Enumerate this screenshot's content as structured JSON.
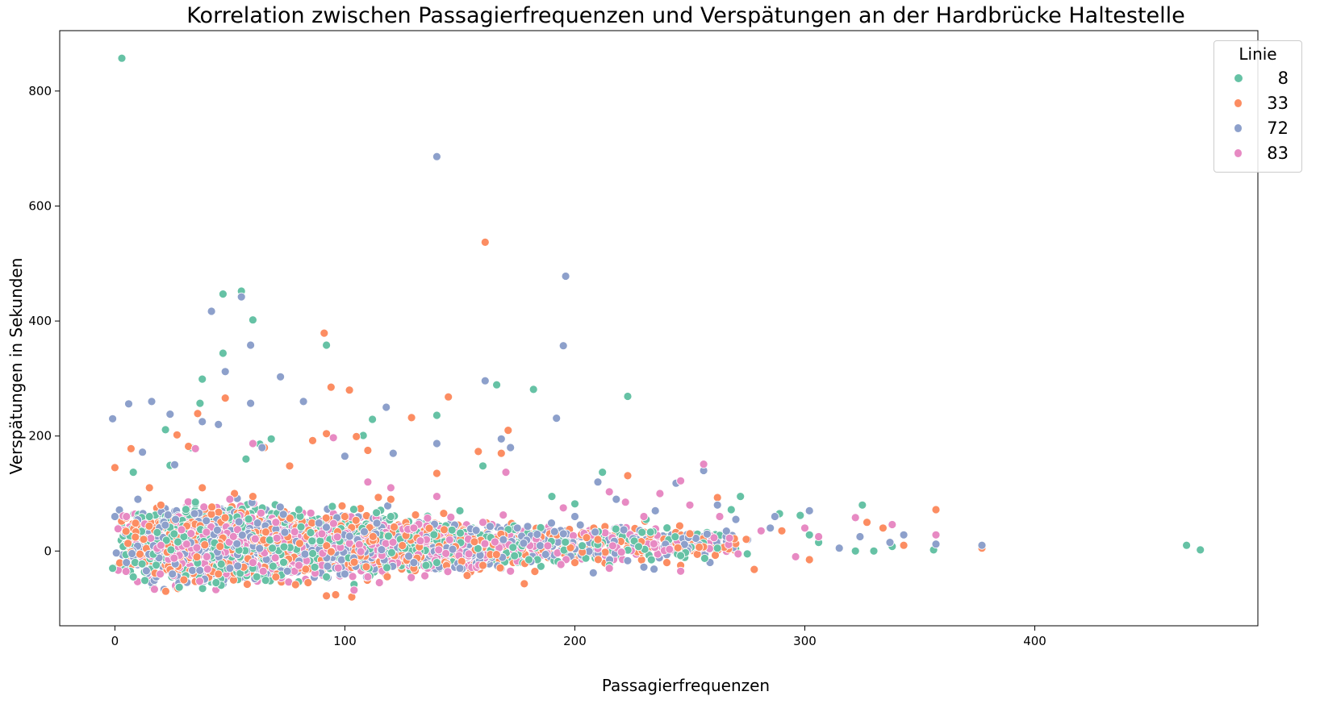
{
  "chart_data": {
    "type": "scatter",
    "title": "Korrelation zwischen Passagierfrequenzen und Verspätungen an der Hardbrücke Haltestelle",
    "xlabel": "Passagierfrequenzen",
    "ylabel": "Verspätungen in Sekunden",
    "xlim": [
      -24,
      497
    ],
    "ylim": [
      -130,
      905
    ],
    "xticks": [
      0,
      100,
      200,
      300,
      400
    ],
    "yticks": [
      0,
      200,
      400,
      600,
      800
    ],
    "grid": false,
    "legend": {
      "title": "Linie",
      "placement": "top-right"
    },
    "series": [
      {
        "name": "8",
        "color": "#66c2a5",
        "points": [
          [
            3,
            857
          ],
          [
            47,
            447
          ],
          [
            55,
            452
          ],
          [
            60,
            402
          ],
          [
            47,
            344
          ],
          [
            38,
            299
          ],
          [
            92,
            358
          ],
          [
            182,
            281
          ],
          [
            223,
            269
          ],
          [
            166,
            289
          ],
          [
            140,
            236
          ],
          [
            112,
            229
          ],
          [
            37,
            257
          ],
          [
            22,
            211
          ],
          [
            68,
            195
          ],
          [
            108,
            201
          ],
          [
            33,
            180
          ],
          [
            63,
            186
          ],
          [
            160,
            148
          ],
          [
            57,
            160
          ],
          [
            24,
            149
          ],
          [
            212,
            137
          ],
          [
            8,
            137
          ],
          [
            190,
            95
          ],
          [
            272,
            95
          ],
          [
            325,
            80
          ],
          [
            466,
            10
          ],
          [
            472,
            2
          ],
          [
            338,
            8
          ],
          [
            298,
            62
          ],
          [
            289,
            65
          ],
          [
            268,
            72
          ],
          [
            231,
            55
          ],
          [
            200,
            82
          ],
          [
            120,
            60
          ],
          [
            150,
            70
          ],
          [
            80,
            72
          ],
          [
            35,
            85
          ],
          [
            15,
            60
          ],
          [
            -1,
            -30
          ],
          [
            28,
            -63
          ],
          [
            104,
            -58
          ],
          [
            8,
            -45
          ],
          [
            44,
            -55
          ],
          [
            60,
            -30
          ],
          [
            92,
            -45
          ],
          [
            140,
            -20
          ],
          [
            180,
            -15
          ],
          [
            215,
            -25
          ],
          [
            246,
            -8
          ],
          [
            262,
            5
          ],
          [
            275,
            -5
          ],
          [
            302,
            28
          ],
          [
            306,
            15
          ],
          [
            322,
            0
          ],
          [
            356,
            2
          ],
          [
            330,
            0
          ]
        ]
      },
      {
        "name": "33",
        "color": "#fc8d62",
        "points": [
          [
            161,
            537
          ],
          [
            91,
            379
          ],
          [
            94,
            285
          ],
          [
            145,
            268
          ],
          [
            48,
            266
          ],
          [
            102,
            280
          ],
          [
            129,
            232
          ],
          [
            36,
            239
          ],
          [
            92,
            204
          ],
          [
            86,
            192
          ],
          [
            105,
            199
          ],
          [
            171,
            210
          ],
          [
            7,
            178
          ],
          [
            27,
            202
          ],
          [
            32,
            182
          ],
          [
            158,
            173
          ],
          [
            168,
            170
          ],
          [
            110,
            175
          ],
          [
            65,
            180
          ],
          [
            76,
            148
          ],
          [
            0,
            145
          ],
          [
            15,
            110
          ],
          [
            52,
            100
          ],
          [
            140,
            135
          ],
          [
            223,
            131
          ],
          [
            262,
            93
          ],
          [
            357,
            72
          ],
          [
            377,
            5
          ],
          [
            302,
            -15
          ],
          [
            278,
            -32
          ],
          [
            178,
            -57
          ],
          [
            103,
            -80
          ],
          [
            92,
            -78
          ],
          [
            96,
            -76
          ],
          [
            84,
            -55
          ],
          [
            30,
            -50
          ],
          [
            45,
            -40
          ],
          [
            70,
            -45
          ],
          [
            130,
            -30
          ],
          [
            160,
            -25
          ],
          [
            200,
            -20
          ],
          [
            240,
            -20
          ],
          [
            246,
            -25
          ],
          [
            210,
            20
          ],
          [
            250,
            30
          ],
          [
            290,
            35
          ],
          [
            315,
            5
          ],
          [
            327,
            50
          ],
          [
            334,
            40
          ],
          [
            343,
            10
          ],
          [
            120,
            90
          ],
          [
            60,
            95
          ],
          [
            20,
            80
          ],
          [
            38,
            110
          ],
          [
            100,
            60
          ]
        ]
      },
      {
        "name": "72",
        "color": "#8da0cb",
        "points": [
          [
            140,
            686
          ],
          [
            196,
            478
          ],
          [
            42,
            417
          ],
          [
            55,
            442
          ],
          [
            195,
            357
          ],
          [
            59,
            358
          ],
          [
            48,
            312
          ],
          [
            72,
            303
          ],
          [
            161,
            296
          ],
          [
            118,
            250
          ],
          [
            82,
            260
          ],
          [
            16,
            260
          ],
          [
            6,
            256
          ],
          [
            59,
            257
          ],
          [
            -1,
            230
          ],
          [
            24,
            238
          ],
          [
            192,
            231
          ],
          [
            38,
            225
          ],
          [
            45,
            220
          ],
          [
            168,
            195
          ],
          [
            172,
            180
          ],
          [
            140,
            187
          ],
          [
            100,
            165
          ],
          [
            121,
            170
          ],
          [
            64,
            180
          ],
          [
            12,
            172
          ],
          [
            26,
            150
          ],
          [
            210,
            120
          ],
          [
            256,
            140
          ],
          [
            244,
            118
          ],
          [
            262,
            80
          ],
          [
            287,
            60
          ],
          [
            302,
            70
          ],
          [
            324,
            25
          ],
          [
            343,
            28
          ],
          [
            357,
            12
          ],
          [
            377,
            10
          ],
          [
            337,
            15
          ],
          [
            315,
            5
          ],
          [
            285,
            40
          ],
          [
            270,
            55
          ],
          [
            235,
            70
          ],
          [
            218,
            90
          ],
          [
            200,
            60
          ],
          [
            175,
            40
          ],
          [
            150,
            -30
          ],
          [
            130,
            -20
          ],
          [
            100,
            -40
          ],
          [
            75,
            -35
          ],
          [
            50,
            -30
          ],
          [
            25,
            -40
          ],
          [
            5,
            -20
          ],
          [
            0,
            60
          ],
          [
            10,
            90
          ],
          [
            208,
            -38
          ],
          [
            230,
            -28
          ]
        ]
      },
      {
        "name": "83",
        "color": "#e78ac3",
        "points": [
          [
            256,
            151
          ],
          [
            246,
            122
          ],
          [
            95,
            197
          ],
          [
            60,
            187
          ],
          [
            35,
            178
          ],
          [
            170,
            137
          ],
          [
            110,
            120
          ],
          [
            120,
            110
          ],
          [
            215,
            103
          ],
          [
            222,
            85
          ],
          [
            237,
            100
          ],
          [
            250,
            80
          ],
          [
            263,
            60
          ],
          [
            281,
            35
          ],
          [
            300,
            40
          ],
          [
            322,
            58
          ],
          [
            338,
            46
          ],
          [
            357,
            28
          ],
          [
            306,
            25
          ],
          [
            296,
            -10
          ],
          [
            271,
            -5
          ],
          [
            246,
            -35
          ],
          [
            215,
            -30
          ],
          [
            172,
            -35
          ],
          [
            110,
            -45
          ],
          [
            104,
            -68
          ],
          [
            115,
            -55
          ],
          [
            80,
            -25
          ],
          [
            60,
            -20
          ],
          [
            40,
            -10
          ],
          [
            20,
            10
          ],
          [
            5,
            60
          ],
          [
            50,
            90
          ],
          [
            140,
            95
          ],
          [
            195,
            75
          ],
          [
            230,
            60
          ],
          [
            160,
            50
          ],
          [
            130,
            40
          ],
          [
            90,
            30
          ],
          [
            70,
            50
          ]
        ]
      }
    ]
  }
}
